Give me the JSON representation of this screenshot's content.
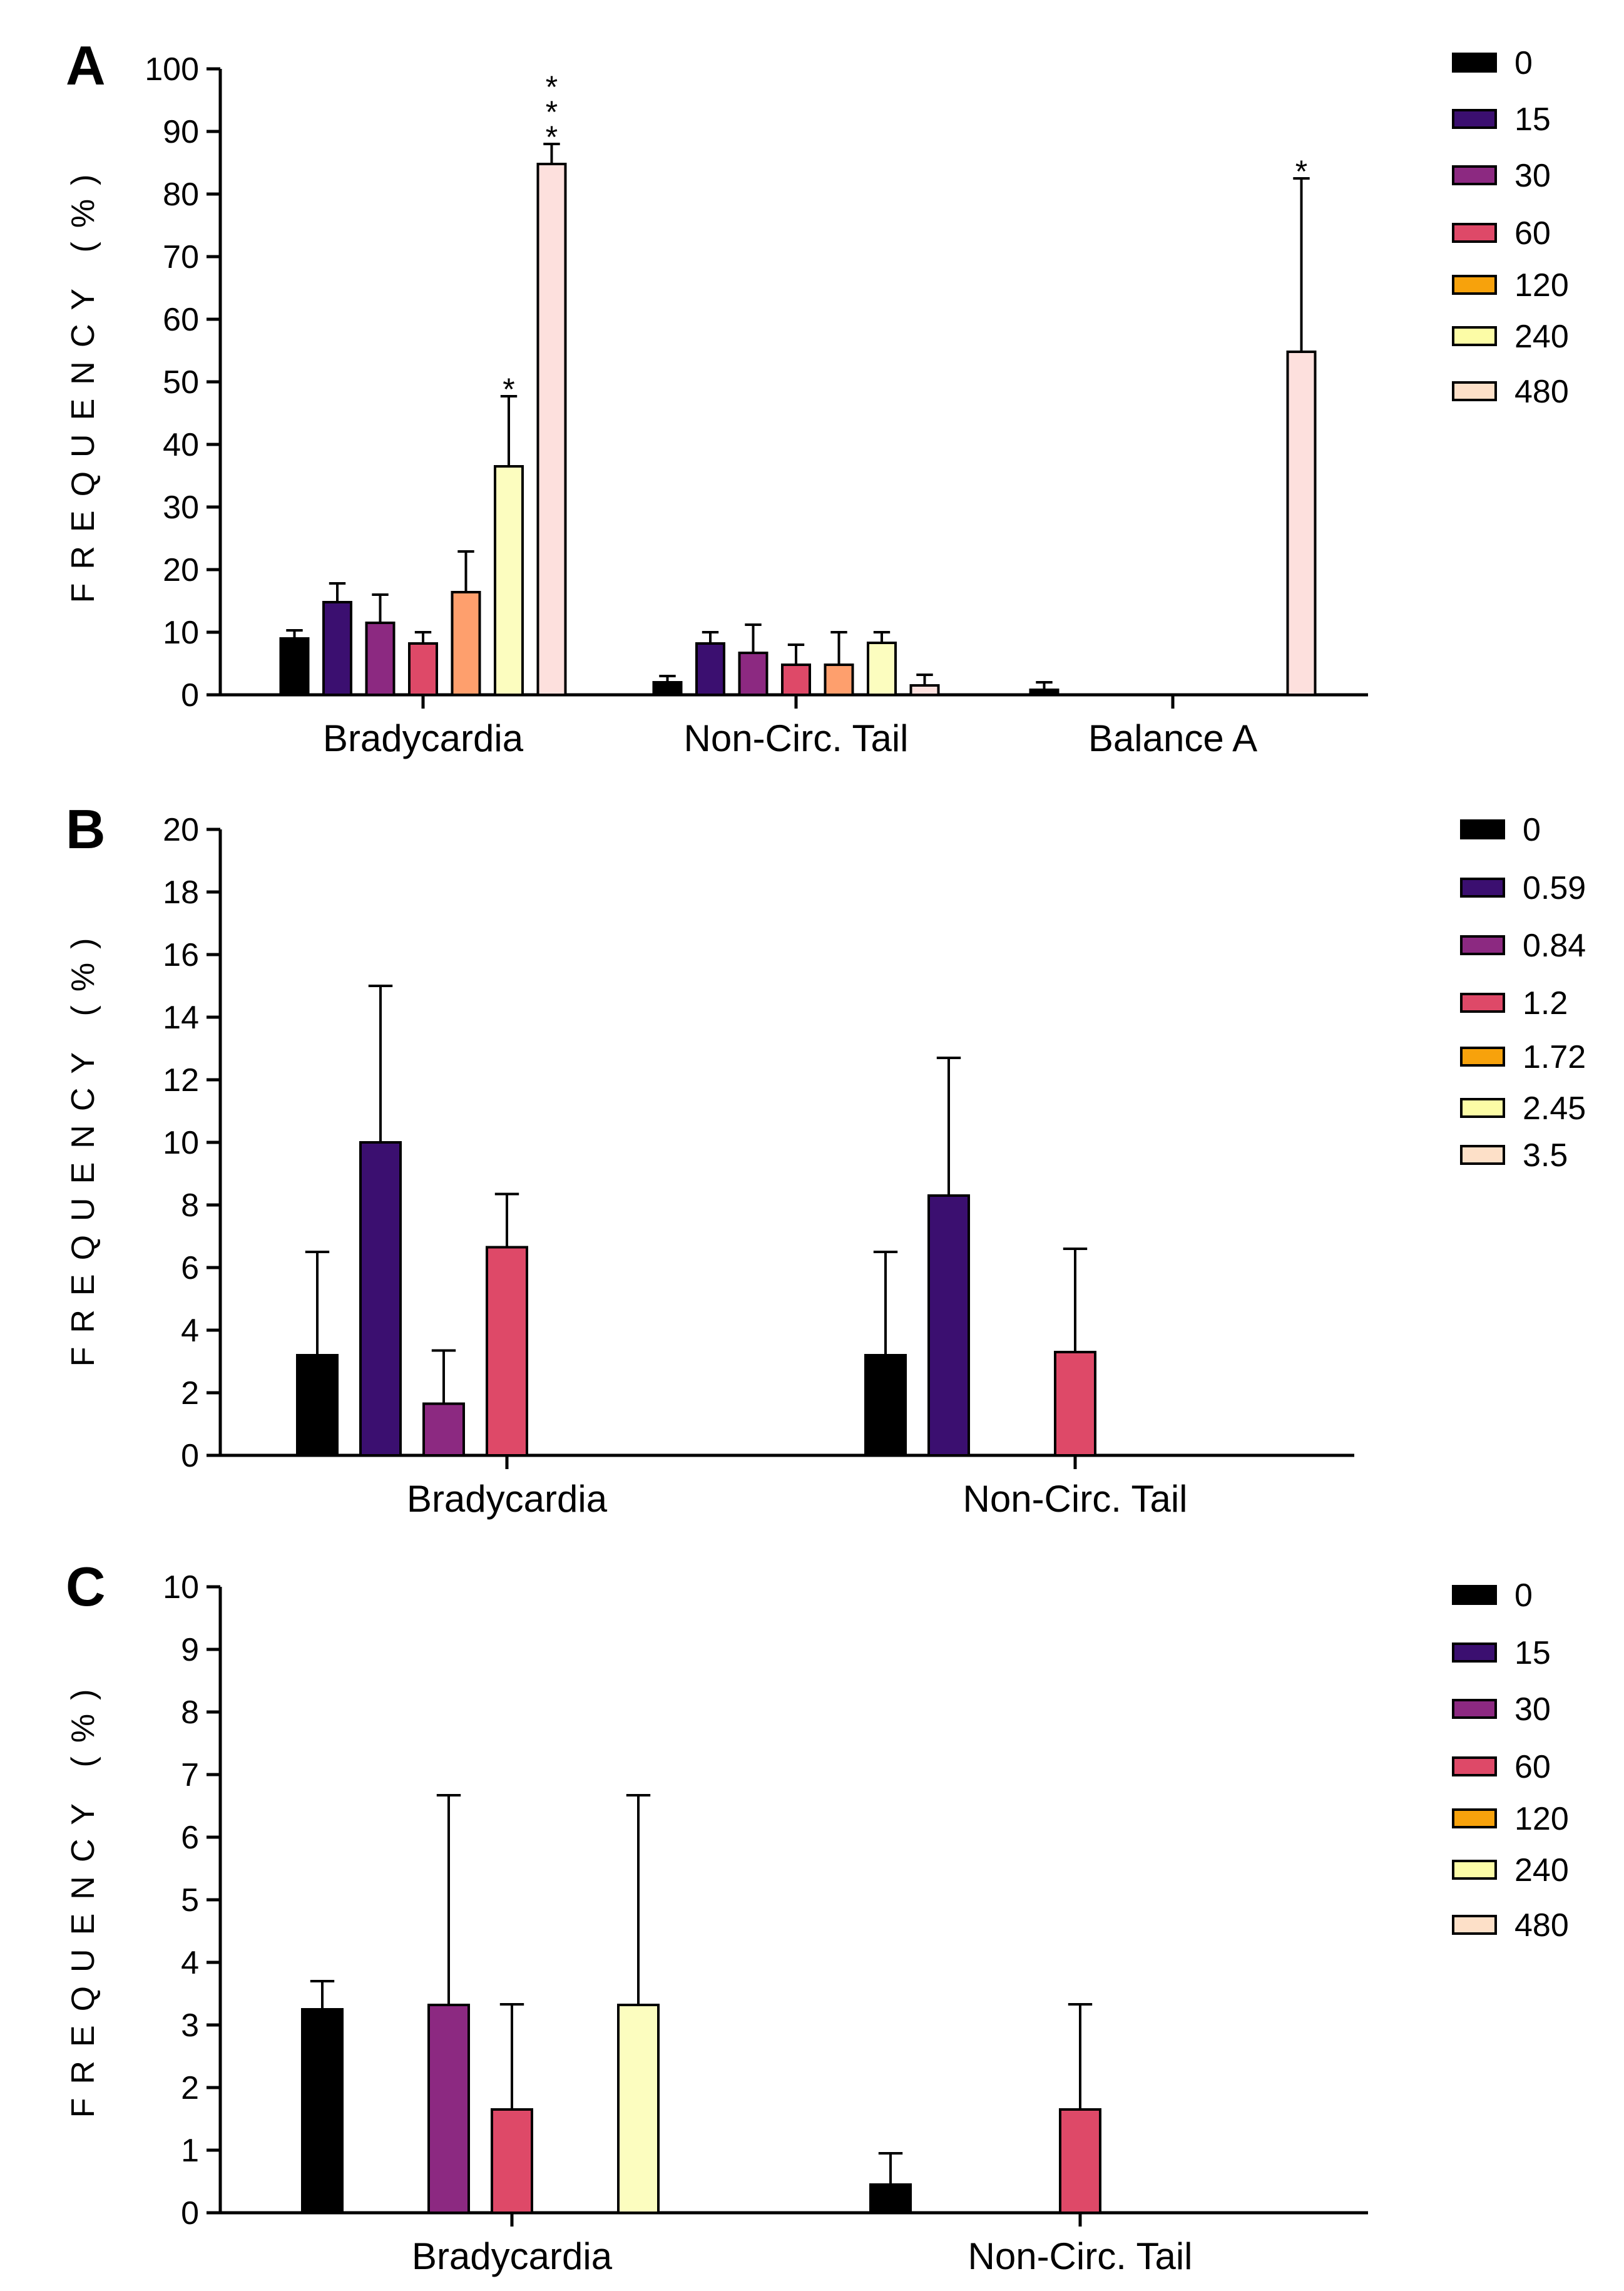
{
  "colors": {
    "dose_0": "#000000",
    "dose_1": "#3b0f70",
    "dose_2": "#8c2981",
    "dose_3": "#de4968",
    "dose_4": "#fe9f6d",
    "dose_5": "#fcfdbf",
    "dose_6": "#fde0dd",
    "legend_4": "#f7a20c",
    "legend_5": "#fcfca6",
    "legend_6": "#fde0c8",
    "axis": "#000000"
  },
  "chart_data": [
    {
      "id": "A",
      "type": "bar",
      "panel_label": "A",
      "ylabel": "FREQUENCY (%)",
      "ylim": [
        0,
        100
      ],
      "ytick_labels": [
        "0",
        "10",
        "20",
        "30",
        "40",
        "50",
        "60",
        "70",
        "80",
        "90",
        "100"
      ],
      "categories": [
        "Bradycardia",
        "Non-Circ. Tail",
        "Balance A"
      ],
      "legend": [
        "0",
        "15",
        "30",
        "60",
        "120",
        "240",
        "480"
      ],
      "bar_colors": [
        "#000000",
        "#3b0f70",
        "#8c2981",
        "#de4968",
        "#fe9f6d",
        "#fcfdbf",
        "#fde0dd"
      ],
      "legend_colors": [
        "#000000",
        "#3b0f70",
        "#8c2981",
        "#de4968",
        "#f7a20c",
        "#fcfca6",
        "#fde0c8"
      ],
      "series": [
        {
          "name": "0",
          "values": [
            9,
            2,
            0.8
          ],
          "errors": [
            1.3,
            1,
            1.2
          ]
        },
        {
          "name": "15",
          "values": [
            14.8,
            8.2,
            0
          ],
          "errors": [
            3,
            1.8,
            0
          ]
        },
        {
          "name": "30",
          "values": [
            11.5,
            6.7,
            0
          ],
          "errors": [
            4.5,
            4.5,
            0
          ]
        },
        {
          "name": "60",
          "values": [
            8.2,
            4.8,
            0
          ],
          "errors": [
            1.8,
            3.2,
            0
          ]
        },
        {
          "name": "120",
          "values": [
            16.4,
            4.8,
            0
          ],
          "errors": [
            6.5,
            5.2,
            0
          ]
        },
        {
          "name": "240",
          "values": [
            36.5,
            8.3,
            0
          ],
          "errors": [
            11.2,
            1.7,
            0
          ]
        },
        {
          "name": "480",
          "values": [
            84.8,
            1.5,
            54.8
          ],
          "errors": [
            3.2,
            1.7,
            27.7
          ]
        }
      ],
      "annotations": [
        {
          "series": 5,
          "category": 0,
          "text": "*"
        },
        {
          "series": 6,
          "category": 0,
          "text": "***"
        },
        {
          "series": 6,
          "category": 2,
          "text": "*"
        }
      ]
    },
    {
      "id": "B",
      "type": "bar",
      "panel_label": "B",
      "ylabel": "FREQUENCY (%)",
      "ylim": [
        0,
        20
      ],
      "ytick_labels": [
        "0",
        "2",
        "4",
        "6",
        "8",
        "10",
        "12",
        "14",
        "16",
        "18",
        "20"
      ],
      "categories": [
        "Bradycardia",
        "Non-Circ. Tail"
      ],
      "legend": [
        "0",
        "0.59",
        "0.84",
        "1.2",
        "1.72",
        "2.45",
        "3.5"
      ],
      "bar_colors": [
        "#000000",
        "#3b0f70",
        "#8c2981",
        "#de4968",
        "#fe9f6d",
        "#fcfdbf",
        "#fde0dd"
      ],
      "legend_colors": [
        "#000000",
        "#3b0f70",
        "#8c2981",
        "#de4968",
        "#f7a20c",
        "#fcfca6",
        "#fde0c8"
      ],
      "series": [
        {
          "name": "0",
          "values": [
            3.2,
            3.2
          ],
          "errors": [
            3.3,
            3.3
          ]
        },
        {
          "name": "0.59",
          "values": [
            10,
            8.3
          ],
          "errors": [
            5,
            4.4
          ]
        },
        {
          "name": "0.84",
          "values": [
            1.65,
            0
          ],
          "errors": [
            1.7,
            0
          ]
        },
        {
          "name": "1.2",
          "values": [
            6.65,
            3.3
          ],
          "errors": [
            1.7,
            3.3
          ]
        },
        {
          "name": "1.72",
          "values": [
            0,
            0
          ],
          "errors": [
            0,
            0
          ]
        },
        {
          "name": "2.45",
          "values": [
            0,
            0
          ],
          "errors": [
            0,
            0
          ]
        },
        {
          "name": "3.5",
          "values": [
            0,
            0
          ],
          "errors": [
            0,
            0
          ]
        }
      ],
      "annotations": []
    },
    {
      "id": "C",
      "type": "bar",
      "panel_label": "C",
      "ylabel": "FREQUENCY (%)",
      "ylim": [
        0,
        10
      ],
      "ytick_labels": [
        "0",
        "1",
        "2",
        "3",
        "4",
        "5",
        "6",
        "7",
        "8",
        "9",
        "10"
      ],
      "categories": [
        "Bradycardia",
        "Non-Circ. Tail"
      ],
      "legend": [
        "0",
        "15",
        "30",
        "60",
        "120",
        "240",
        "480"
      ],
      "bar_colors": [
        "#000000",
        "#3b0f70",
        "#8c2981",
        "#de4968",
        "#fe9f6d",
        "#fcfdbf",
        "#fde0c8"
      ],
      "legend_colors": [
        "#000000",
        "#3b0f70",
        "#8c2981",
        "#de4968",
        "#f7a20c",
        "#fcfca6",
        "#fde0c8"
      ],
      "series": [
        {
          "name": "0",
          "values": [
            3.25,
            0.45
          ],
          "errors": [
            0.45,
            0.5
          ]
        },
        {
          "name": "15",
          "values": [
            0,
            0
          ],
          "errors": [
            0,
            0
          ]
        },
        {
          "name": "30",
          "values": [
            3.32,
            0
          ],
          "errors": [
            3.35,
            0
          ]
        },
        {
          "name": "60",
          "values": [
            1.65,
            1.65
          ],
          "errors": [
            1.68,
            1.68
          ]
        },
        {
          "name": "120",
          "values": [
            0,
            0
          ],
          "errors": [
            0,
            0
          ]
        },
        {
          "name": "240",
          "values": [
            3.32,
            0
          ],
          "errors": [
            3.35,
            0
          ]
        },
        {
          "name": "480",
          "values": [
            0,
            0
          ],
          "errors": [
            0,
            0
          ]
        }
      ],
      "annotations": []
    }
  ]
}
